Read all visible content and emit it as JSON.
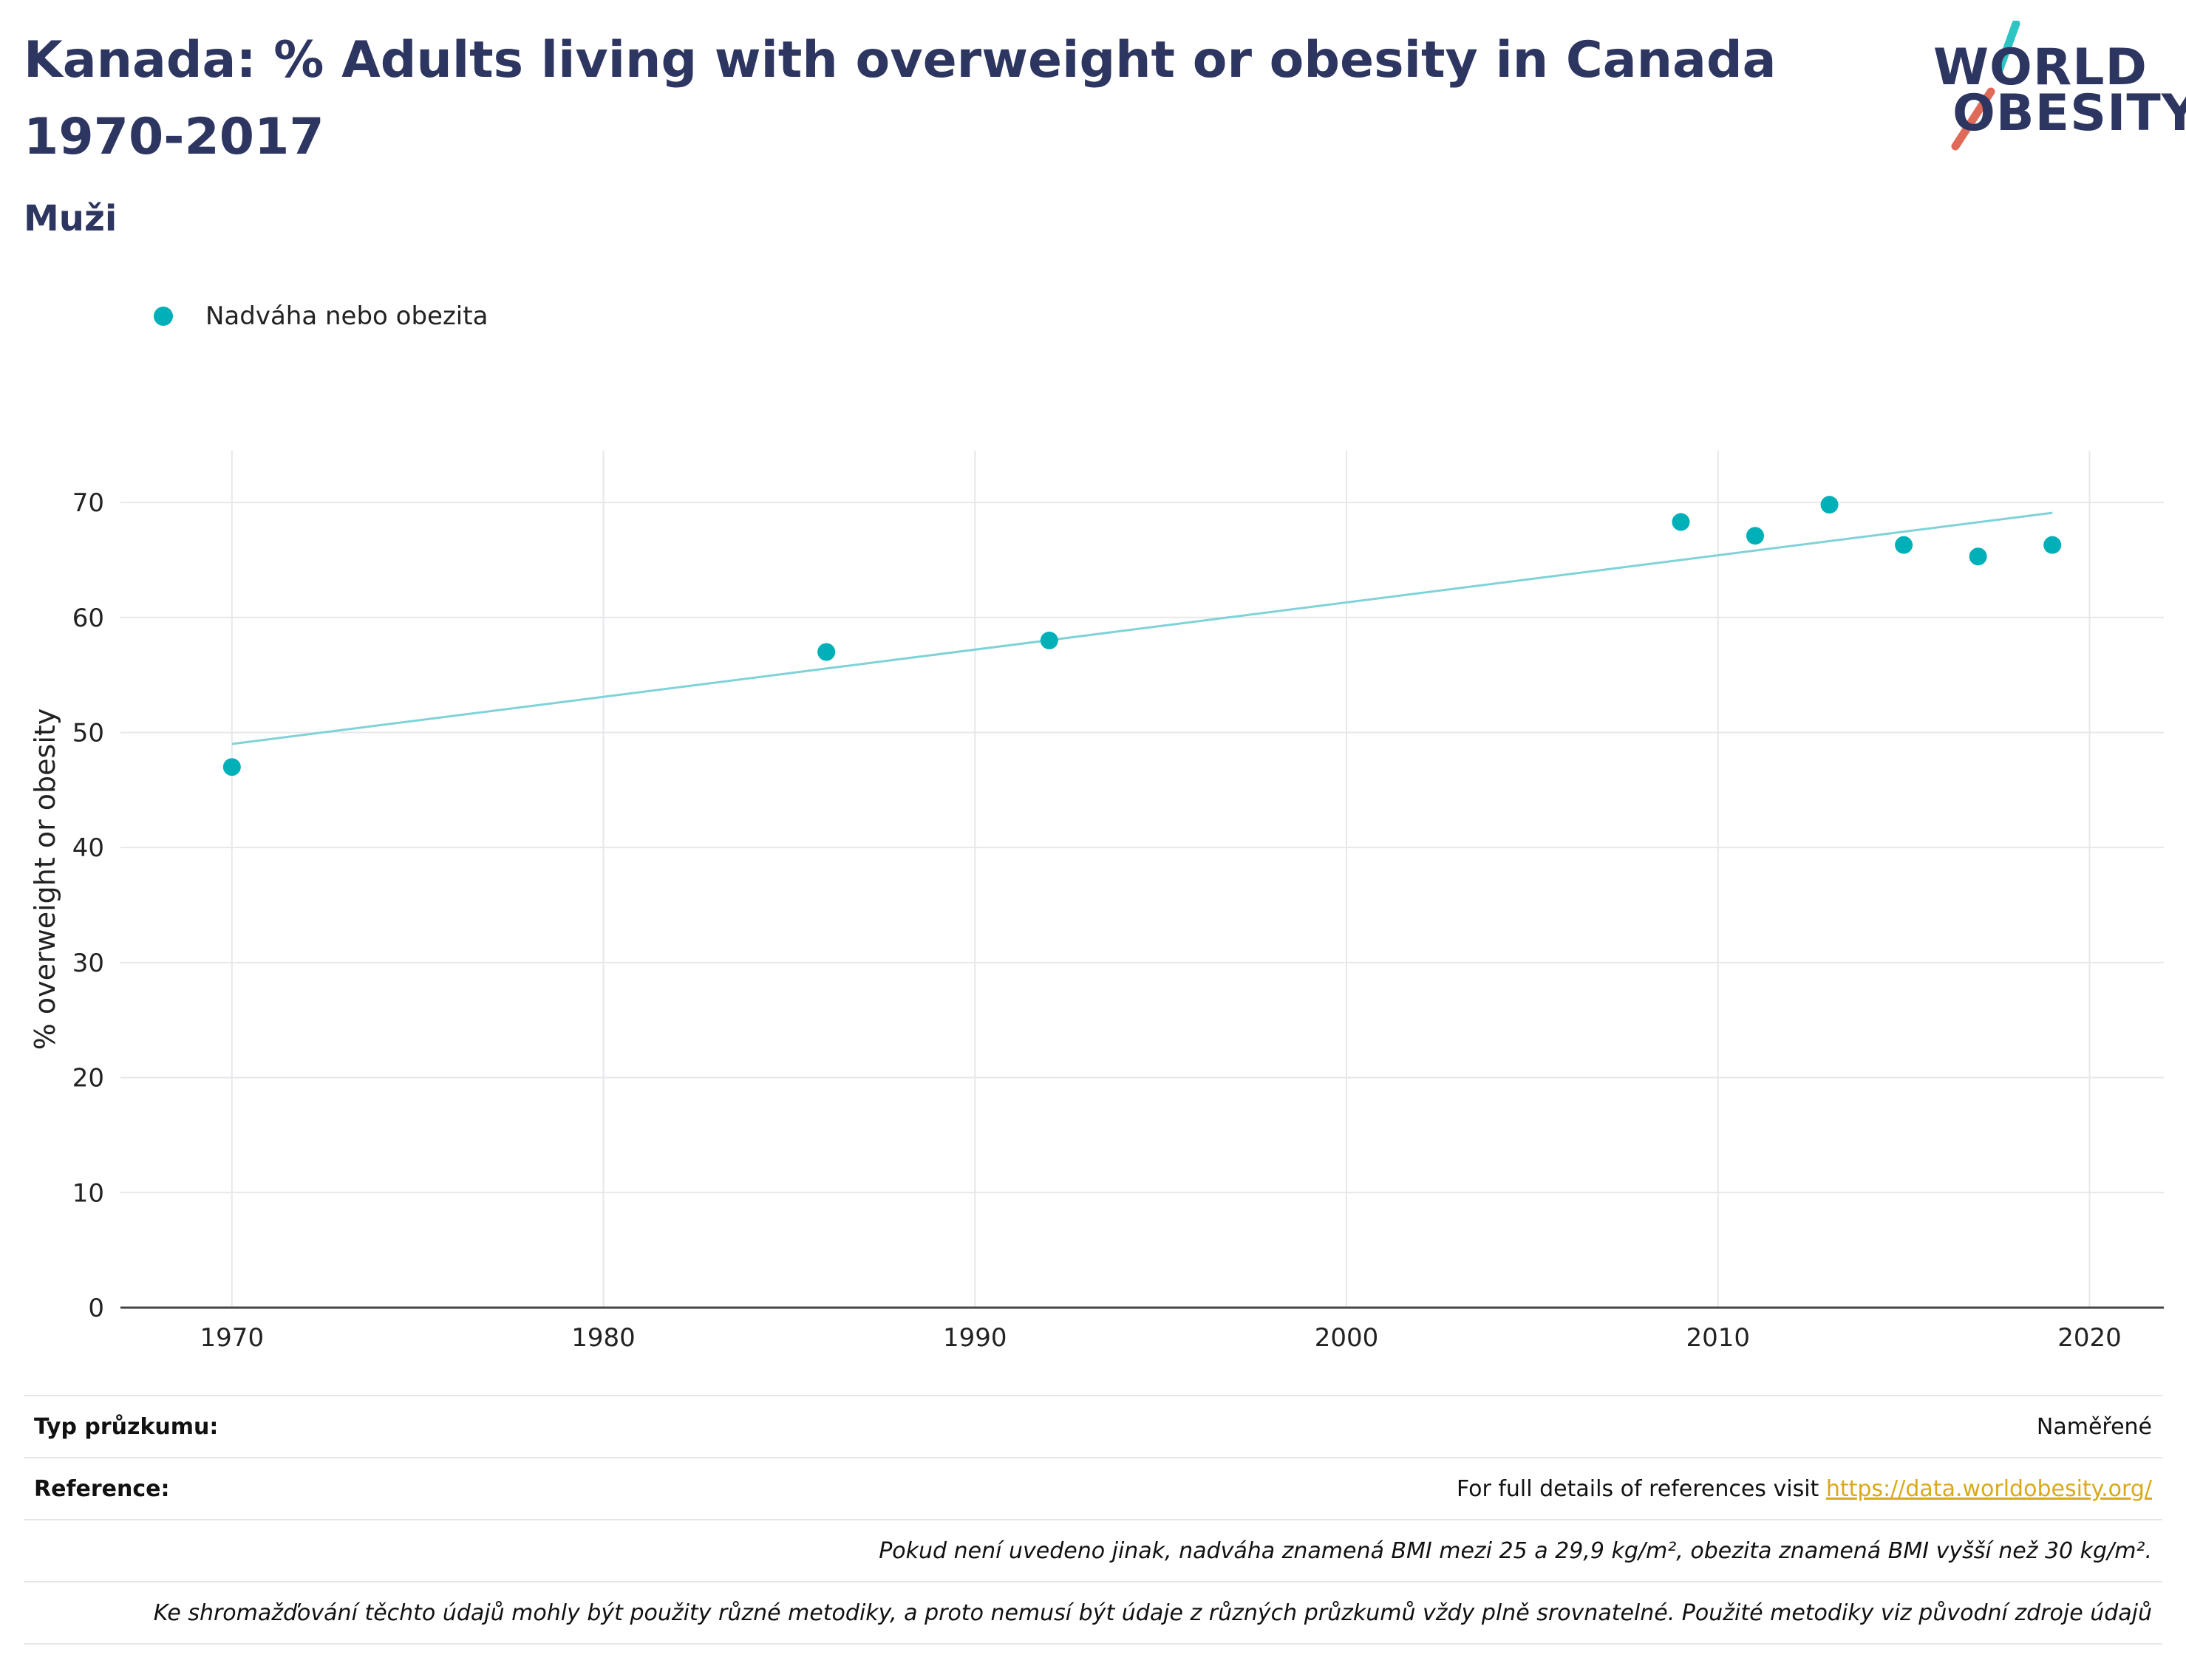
{
  "header": {
    "title": "Kanada: % Adults living with overweight or obesity in Canada 1970-2017",
    "subtitle": "Muži"
  },
  "logo": {
    "line1": "WORLD",
    "line2": "OBESITY",
    "accent_teal": "#2ec4c4",
    "accent_red": "#e06a5a"
  },
  "legend": {
    "label": "Nadváha nebo obezita",
    "color": "#00b0b9"
  },
  "chart_data": {
    "type": "scatter",
    "ylabel": "% overweight or obesity",
    "xlabel": "",
    "xlim": [
      1967,
      2022
    ],
    "ylim": [
      0,
      74.5
    ],
    "xticks": [
      1970,
      1980,
      1990,
      2000,
      2010,
      2020
    ],
    "yticks": [
      0,
      10,
      20,
      30,
      40,
      50,
      60,
      70
    ],
    "grid": true,
    "legend_position": "top-left",
    "series": [
      {
        "name": "Nadváha nebo obezita",
        "color": "#00b0b9",
        "points": [
          {
            "x": 1970,
            "y": 47
          },
          {
            "x": 1986,
            "y": 57
          },
          {
            "x": 1992,
            "y": 58
          },
          {
            "x": 2009,
            "y": 68.3
          },
          {
            "x": 2011,
            "y": 67.1
          },
          {
            "x": 2013,
            "y": 69.8
          },
          {
            "x": 2015,
            "y": 66.3
          },
          {
            "x": 2017,
            "y": 65.3
          },
          {
            "x": 2019,
            "y": 66.3
          }
        ]
      }
    ],
    "trendline": {
      "color": "#7fd3d8",
      "start": {
        "x": 1970,
        "y": 49
      },
      "end": {
        "x": 2019,
        "y": 69.1
      }
    }
  },
  "footer": {
    "survey_label": "Typ průzkumu:",
    "survey_value": "Naměřené",
    "reference_label": "Reference:",
    "reference_text": "For full details of references visit",
    "reference_link": "https://data.worldobesity.org/",
    "note1": "Pokud není uvedeno jinak, nadváha znamená BMI mezi 25 a 29,9 kg/m², obezita znamená BMI vyšší než 30 kg/m².",
    "note2": "Ke shromažďování těchto údajů mohly být použity různé metodiky, a proto nemusí být údaje z různých průzkumů vždy plně srovnatelné. Použité metodiky viz původní zdroje údajů"
  }
}
